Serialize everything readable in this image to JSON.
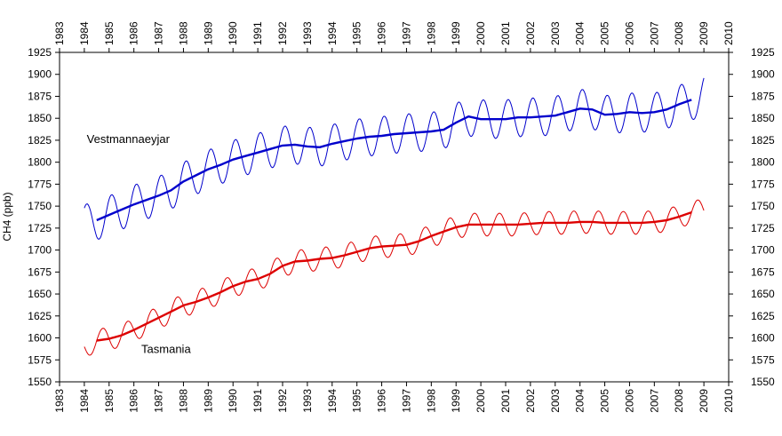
{
  "chart_data": {
    "type": "line",
    "title": "",
    "xlabel": "",
    "ylabel": "CH4 (ppb)",
    "xlim": [
      1983,
      2010
    ],
    "ylim": [
      1550,
      1925
    ],
    "x_ticks": [
      "1983",
      "1984",
      "1985",
      "1986",
      "1987",
      "1988",
      "1989",
      "1990",
      "1991",
      "1992",
      "1993",
      "1994",
      "1995",
      "1996",
      "1997",
      "1998",
      "1999",
      "2000",
      "2001",
      "2002",
      "2003",
      "2004",
      "2005",
      "2006",
      "2007",
      "2008",
      "2009",
      "2010"
    ],
    "y_ticks": [
      "1550",
      "1575",
      "1600",
      "1625",
      "1650",
      "1675",
      "1700",
      "1725",
      "1750",
      "1775",
      "1800",
      "1825",
      "1850",
      "1875",
      "1900",
      "1925"
    ],
    "grid": false,
    "legend": "none",
    "annotations": [
      {
        "text": "Vestmannaeyjar",
        "x": 1984.1,
        "y": 1822
      },
      {
        "text": "Tasmania",
        "x": 1986.3,
        "y": 1583
      }
    ],
    "series": [
      {
        "name": "Vestmannaeyjar",
        "color": "#0000cc",
        "style": "monthly",
        "x": [
          1984.0,
          1984.5,
          1985.0,
          1985.5,
          1986.0,
          1986.5,
          1987.0,
          1987.5,
          1988.0,
          1988.5,
          1989.0,
          1989.5,
          1990.0,
          1990.5,
          1991.0,
          1991.5,
          1992.0,
          1992.5,
          1993.0,
          1993.5,
          1994.0,
          1994.5,
          1995.0,
          1995.5,
          1996.0,
          1996.5,
          1997.0,
          1997.5,
          1998.0,
          1998.5,
          1999.0,
          1999.5,
          2000.0,
          2000.5,
          2001.0,
          2001.5,
          2002.0,
          2002.5,
          2003.0,
          2003.5,
          2004.0,
          2004.5,
          2005.0,
          2005.5,
          2006.0,
          2006.5,
          2007.0,
          2007.5,
          2008.0,
          2008.5,
          2009.0
        ],
        "trend": [
          1730,
          1733,
          1740,
          1745,
          1752,
          1757,
          1762,
          1768,
          1778,
          1785,
          1792,
          1797,
          1803,
          1807,
          1811,
          1815,
          1819,
          1820,
          1818,
          1817,
          1821,
          1824,
          1827,
          1829,
          1830,
          1832,
          1833,
          1834,
          1835,
          1837,
          1845,
          1852,
          1849,
          1849,
          1849,
          1851,
          1851,
          1852,
          1853,
          1857,
          1861,
          1860,
          1854,
          1855,
          1857,
          1856,
          1857,
          1860,
          1866,
          1869,
          1878
        ],
        "amplitude": 22
      },
      {
        "name": "Vestmannaeyjar trend",
        "color": "#0000cc",
        "style": "trend",
        "x": [
          1984.5,
          1985.0,
          1985.5,
          1986.0,
          1986.5,
          1987.0,
          1987.5,
          1988.0,
          1988.5,
          1989.0,
          1989.5,
          1990.0,
          1990.5,
          1991.0,
          1991.5,
          1992.0,
          1992.5,
          1993.0,
          1993.5,
          1994.0,
          1994.5,
          1995.0,
          1995.5,
          1996.0,
          1996.5,
          1997.0,
          1997.5,
          1998.0,
          1998.5,
          1999.0,
          1999.5,
          2000.0,
          2000.5,
          2001.0,
          2001.5,
          2002.0,
          2002.5,
          2003.0,
          2003.5,
          2004.0,
          2004.5,
          2005.0,
          2005.5,
          2006.0,
          2006.5,
          2007.0,
          2007.5,
          2008.0,
          2008.5
        ],
        "values": [
          1734,
          1740,
          1746,
          1752,
          1757,
          1762,
          1768,
          1778,
          1785,
          1792,
          1797,
          1803,
          1807,
          1811,
          1815,
          1819,
          1820,
          1818,
          1817,
          1821,
          1824,
          1827,
          1829,
          1830,
          1832,
          1833,
          1834,
          1835,
          1837,
          1845,
          1852,
          1849,
          1849,
          1849,
          1851,
          1851,
          1852,
          1853,
          1857,
          1861,
          1860,
          1854,
          1855,
          1857,
          1856,
          1857,
          1860,
          1866,
          1871
        ]
      },
      {
        "name": "Tasmania",
        "color": "#dd0000",
        "style": "monthly",
        "x": [
          1984.0,
          1984.5,
          1985.0,
          1985.5,
          1986.0,
          1986.5,
          1987.0,
          1987.5,
          1988.0,
          1988.5,
          1989.0,
          1989.5,
          1990.0,
          1990.5,
          1991.0,
          1991.5,
          1992.0,
          1992.5,
          1993.0,
          1993.5,
          1994.0,
          1994.5,
          1995.0,
          1995.5,
          1996.0,
          1996.5,
          1997.0,
          1997.5,
          1998.0,
          1998.5,
          1999.0,
          1999.5,
          2000.0,
          2000.5,
          2001.0,
          2001.5,
          2002.0,
          2002.5,
          2003.0,
          2003.5,
          2004.0,
          2004.5,
          2005.0,
          2005.5,
          2006.0,
          2006.5,
          2007.0,
          2007.5,
          2008.0,
          2008.5,
          2009.0
        ],
        "trend": [
          1590,
          1597,
          1599,
          1603,
          1609,
          1616,
          1623,
          1630,
          1637,
          1641,
          1646,
          1652,
          1659,
          1664,
          1667,
          1673,
          1682,
          1687,
          1688,
          1690,
          1691,
          1694,
          1698,
          1702,
          1704,
          1705,
          1706,
          1710,
          1716,
          1721,
          1726,
          1729,
          1729,
          1729,
          1729,
          1729,
          1730,
          1731,
          1731,
          1731,
          1732,
          1732,
          1731,
          1731,
          1731,
          1731,
          1732,
          1734,
          1738,
          1743,
          1745
        ],
        "amplitude": 13
      },
      {
        "name": "Tasmania trend",
        "color": "#dd0000",
        "style": "trend",
        "x": [
          1984.5,
          1985.0,
          1985.5,
          1986.0,
          1986.5,
          1987.0,
          1987.5,
          1988.0,
          1988.5,
          1989.0,
          1989.5,
          1990.0,
          1990.5,
          1991.0,
          1991.5,
          1992.0,
          1992.5,
          1993.0,
          1993.5,
          1994.0,
          1994.5,
          1995.0,
          1995.5,
          1996.0,
          1996.5,
          1997.0,
          1997.5,
          1998.0,
          1998.5,
          1999.0,
          1999.5,
          2000.0,
          2000.5,
          2001.0,
          2001.5,
          2002.0,
          2002.5,
          2003.0,
          2003.5,
          2004.0,
          2004.5,
          2005.0,
          2005.5,
          2006.0,
          2006.5,
          2007.0,
          2007.5,
          2008.0,
          2008.5
        ],
        "values": [
          1597,
          1599,
          1603,
          1609,
          1616,
          1623,
          1630,
          1637,
          1641,
          1646,
          1652,
          1659,
          1664,
          1667,
          1673,
          1682,
          1687,
          1688,
          1690,
          1691,
          1694,
          1698,
          1702,
          1704,
          1705,
          1706,
          1710,
          1716,
          1721,
          1726,
          1729,
          1729,
          1729,
          1729,
          1729,
          1730,
          1731,
          1731,
          1731,
          1732,
          1732,
          1731,
          1731,
          1731,
          1731,
          1732,
          1734,
          1738,
          1743
        ]
      }
    ]
  }
}
